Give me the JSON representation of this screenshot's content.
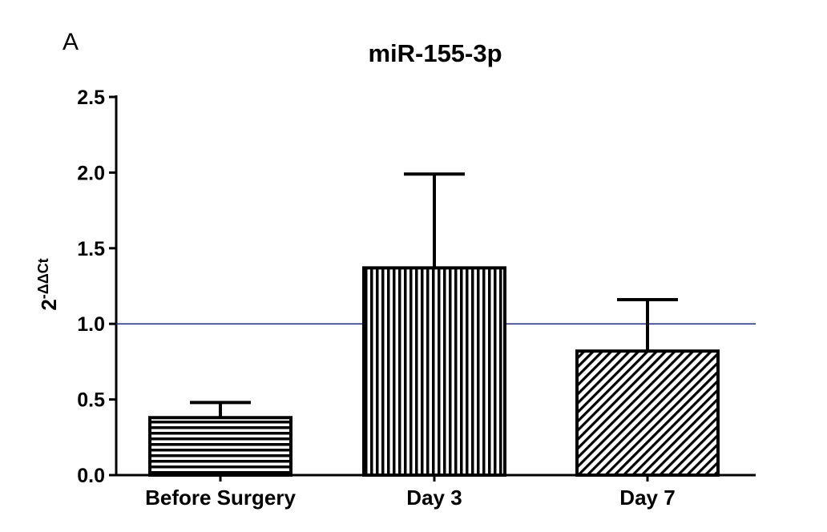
{
  "panel_label": "A",
  "chart_data": {
    "type": "bar",
    "title": "miR-155-3p",
    "xlabel": "",
    "ylabel": {
      "base": "2",
      "superscript": "-ΔΔCt"
    },
    "categories": [
      "Before Surgery",
      "Day 3",
      "Day 7"
    ],
    "values": [
      0.38,
      1.37,
      0.82
    ],
    "error_upper": [
      0.48,
      1.99,
      1.16
    ],
    "ylim": [
      0,
      2.5
    ],
    "yticks": [
      0.0,
      0.5,
      1.0,
      1.5,
      2.0,
      2.5
    ],
    "ytick_labels": [
      "0.0",
      "0.5",
      "1.0",
      "1.5",
      "2.0",
      "2.5"
    ],
    "reference_line": 1.0,
    "bar_patterns": [
      "horizontal-stripes",
      "vertical-stripes",
      "diagonal-stripes"
    ],
    "grid": false,
    "colors": {
      "bar_stroke": "#000000",
      "reference_line": "#1f2a80",
      "axis": "#000000"
    }
  }
}
